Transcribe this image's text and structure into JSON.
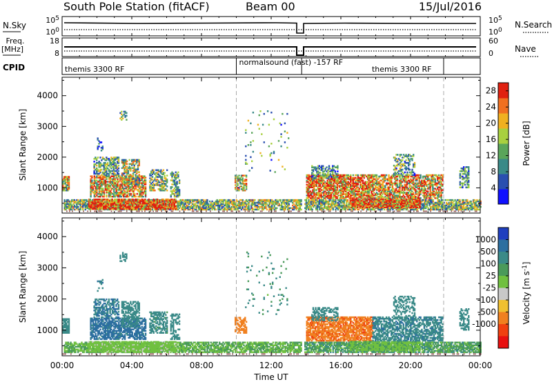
{
  "header": {
    "station": "South Pole Station (fitACF)",
    "beam": "Beam 00",
    "date": "15/Jul/2016"
  },
  "top_panels": {
    "nsky_label": "N.Sky",
    "nsky_ticks": [
      "10^5",
      "10^0"
    ],
    "nsearch_label": "N.Search",
    "nsearch_ticks": [
      "10^5",
      "10^0"
    ],
    "freq_label": "Freq.",
    "freq_unit": "[MHz]",
    "freq_ticks": [
      "18",
      "8"
    ],
    "nave_label": "Nave",
    "nave_ticks": [
      "60",
      "0"
    ],
    "cpid_label": "CPID",
    "cpid_segments": [
      {
        "label": "themis 3300 RF",
        "start": 0,
        "end": 10
      },
      {
        "label": "normalsound (fast) -157 RF",
        "start": 10,
        "end": 13.75
      },
      {
        "label": "themis 3300 RF",
        "start": 13.75,
        "end": 21.9
      }
    ]
  },
  "time_axis": {
    "label": "Time UT",
    "ticks": [
      "00:00",
      "04:00",
      "08:00",
      "12:00",
      "16:00",
      "20:00",
      "00:00"
    ]
  },
  "chart_data": [
    {
      "type": "heatmap",
      "name": "power",
      "ylabel": "Slant Range [km]",
      "yticks": [
        "1000",
        "2000",
        "3000",
        "4000"
      ],
      "ylim": [
        180,
        4600
      ],
      "xlim": [
        0,
        24
      ],
      "colorbar_label": "Power [dB]",
      "colorbar_ticks": [
        "4",
        "8",
        "12",
        "16",
        "20",
        "24",
        "28"
      ],
      "colorbar_range": [
        0,
        30
      ],
      "colors": [
        "#1010ff",
        "#2a4fb0",
        "#3a8a88",
        "#5aa55a",
        "#a8d040",
        "#f0b020",
        "#f07020",
        "#e02010"
      ],
      "dashed_times": [
        10,
        21.9
      ],
      "data_gap": [
        13.75,
        13.85
      ],
      "clusters": [
        {
          "t": [
            0.0,
            0.4
          ],
          "r": [
            900,
            1350
          ],
          "v": 18,
          "d": 0.8
        },
        {
          "t": [
            0.1,
            13.7
          ],
          "r": [
            280,
            620
          ],
          "v": 14,
          "d": 0.75
        },
        {
          "t": [
            1.5,
            6.5
          ],
          "r": [
            300,
            620
          ],
          "v": 27,
          "d": 0.8
        },
        {
          "t": [
            1.6,
            4.8
          ],
          "r": [
            700,
            1400
          ],
          "v": 20,
          "d": 0.7
        },
        {
          "t": [
            1.8,
            3.2
          ],
          "r": [
            1400,
            2000
          ],
          "v": 12,
          "d": 0.55
        },
        {
          "t": [
            3.4,
            4.4
          ],
          "r": [
            1100,
            1900
          ],
          "v": 16,
          "d": 0.6
        },
        {
          "t": [
            5.0,
            6.0
          ],
          "r": [
            900,
            1600
          ],
          "v": 14,
          "d": 0.55
        },
        {
          "t": [
            6.2,
            6.7
          ],
          "r": [
            700,
            1500
          ],
          "v": 13,
          "d": 0.5
        },
        {
          "t": [
            2.0,
            2.3
          ],
          "r": [
            2200,
            2600
          ],
          "v": 8,
          "d": 0.3
        },
        {
          "t": [
            3.3,
            3.7
          ],
          "r": [
            3200,
            3500
          ],
          "v": 14,
          "d": 0.35
        },
        {
          "t": [
            9.9,
            10.6
          ],
          "r": [
            900,
            1400
          ],
          "v": 18,
          "d": 0.6
        },
        {
          "t": [
            13.9,
            24.0
          ],
          "r": [
            280,
            620
          ],
          "v": 14,
          "d": 0.75
        },
        {
          "t": [
            14.0,
            17.8
          ],
          "r": [
            650,
            1400
          ],
          "v": 24,
          "d": 0.75
        },
        {
          "t": [
            14.3,
            15.8
          ],
          "r": [
            1300,
            1700
          ],
          "v": 10,
          "d": 0.45
        },
        {
          "t": [
            16.5,
            20.5
          ],
          "r": [
            350,
            620
          ],
          "v": 27,
          "d": 0.75
        },
        {
          "t": [
            17.8,
            21.8
          ],
          "r": [
            650,
            1400
          ],
          "v": 20,
          "d": 0.65
        },
        {
          "t": [
            19.0,
            20.2
          ],
          "r": [
            1400,
            2100
          ],
          "v": 12,
          "d": 0.4
        },
        {
          "t": [
            22.8,
            23.3
          ],
          "r": [
            1000,
            1700
          ],
          "v": 10,
          "d": 0.55
        },
        {
          "t": [
            10.5,
            13.0
          ],
          "r": [
            1500,
            3500
          ],
          "v": 12,
          "d": 0.04
        }
      ]
    },
    {
      "type": "heatmap",
      "name": "velocity",
      "ylabel": "Slant Range [km]",
      "yticks": [
        "1000",
        "2000",
        "3000",
        "4000"
      ],
      "ylim": [
        180,
        4600
      ],
      "xlim": [
        0,
        24
      ],
      "colorbar_label": "Velocity [m s^-1]",
      "colorbar_ticks": [
        "1000",
        "500",
        "100",
        "25",
        "-25",
        "-100",
        "-500",
        "-1000"
      ],
      "colorbar_range": [
        -1200,
        1200
      ],
      "colors": [
        "#1f3fbf",
        "#2c6fa0",
        "#3a8a88",
        "#4a9a5a",
        "#70c040",
        "#c8c8c8",
        "#f0c030",
        "#f08020",
        "#f04010",
        "#e81010"
      ],
      "dashed_times": [
        10,
        21.9
      ],
      "data_gap": [
        13.75,
        13.85
      ],
      "clusters": [
        {
          "t": [
            0.0,
            0.4
          ],
          "r": [
            900,
            1350
          ],
          "v": 300,
          "d": 0.8
        },
        {
          "t": [
            0.1,
            13.7
          ],
          "r": [
            280,
            620
          ],
          "v": 60,
          "d": 0.75
        },
        {
          "t": [
            1.5,
            6.5
          ],
          "r": [
            300,
            620
          ],
          "v": 40,
          "d": 0.8
        },
        {
          "t": [
            1.6,
            4.8
          ],
          "r": [
            700,
            1400
          ],
          "v": 700,
          "d": 0.7
        },
        {
          "t": [
            1.8,
            3.2
          ],
          "r": [
            1400,
            2000
          ],
          "v": 500,
          "d": 0.55
        },
        {
          "t": [
            3.4,
            4.4
          ],
          "r": [
            1100,
            1900
          ],
          "v": 200,
          "d": 0.6
        },
        {
          "t": [
            5.0,
            6.0
          ],
          "r": [
            900,
            1600
          ],
          "v": 150,
          "d": 0.55
        },
        {
          "t": [
            6.2,
            6.7
          ],
          "r": [
            700,
            1500
          ],
          "v": 300,
          "d": 0.5
        },
        {
          "t": [
            2.0,
            2.3
          ],
          "r": [
            2200,
            2600
          ],
          "v": 500,
          "d": 0.3
        },
        {
          "t": [
            3.3,
            3.7
          ],
          "r": [
            3200,
            3500
          ],
          "v": 200,
          "d": 0.35
        },
        {
          "t": [
            9.9,
            10.6
          ],
          "r": [
            900,
            1400
          ],
          "v": -250,
          "d": 0.6
        },
        {
          "t": [
            13.9,
            24.0
          ],
          "r": [
            280,
            620
          ],
          "v": 80,
          "d": 0.75
        },
        {
          "t": [
            14.0,
            17.8
          ],
          "r": [
            650,
            1400
          ],
          "v": -400,
          "d": 0.75
        },
        {
          "t": [
            14.3,
            15.8
          ],
          "r": [
            1300,
            1700
          ],
          "v": 300,
          "d": 0.45
        },
        {
          "t": [
            16.5,
            20.5
          ],
          "r": [
            350,
            620
          ],
          "v": 50,
          "d": 0.75
        },
        {
          "t": [
            17.8,
            21.8
          ],
          "r": [
            650,
            1400
          ],
          "v": 400,
          "d": 0.65
        },
        {
          "t": [
            19.0,
            20.2
          ],
          "r": [
            1400,
            2100
          ],
          "v": 200,
          "d": 0.4
        },
        {
          "t": [
            22.8,
            23.3
          ],
          "r": [
            1000,
            1700
          ],
          "v": 300,
          "d": 0.55
        },
        {
          "t": [
            10.5,
            13.0
          ],
          "r": [
            1500,
            3500
          ],
          "v": 100,
          "d": 0.04
        }
      ]
    }
  ]
}
